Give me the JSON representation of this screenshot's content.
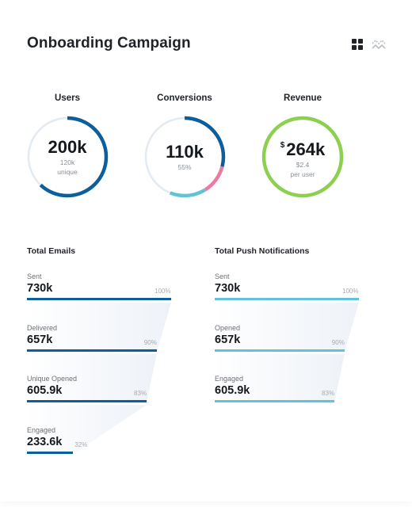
{
  "header": {
    "title": "Onboarding Campaign",
    "icons": [
      "grid-view-icon",
      "trend-view-icon"
    ]
  },
  "kpis": [
    {
      "label": "Users",
      "value": "200k",
      "sub1": "120k",
      "sub2": "unique",
      "ring_fraction": 0.62,
      "color": "#0d5e9c"
    },
    {
      "label": "Conversions",
      "value": "110k",
      "sub1": "55%",
      "sub2": "",
      "segments": [
        {
          "fraction": 0.29,
          "color": "#0d5e9c"
        },
        {
          "fraction": 0.12,
          "color": "#ec7ba2"
        },
        {
          "fraction": 0.15,
          "color": "#62c3d8"
        }
      ]
    },
    {
      "label": "Revenue",
      "currency": "$",
      "value": "264k",
      "sub1": "$2.4",
      "sub2": "per user",
      "ring_fraction": 1.0,
      "color": "#8dcf4f"
    }
  ],
  "emails": {
    "title": "Total Emails",
    "color": "#0d5e9c",
    "rows": [
      {
        "label": "Sent",
        "value": "730k",
        "percent": "100%",
        "fraction": 1.0
      },
      {
        "label": "Delivered",
        "value": "657k",
        "percent": "90%",
        "fraction": 0.9
      },
      {
        "label": "Unique Opened",
        "value": "605.9k",
        "percent": "83%",
        "fraction": 0.83
      },
      {
        "label": "Engaged",
        "value": "233.6k",
        "percent": "32%",
        "fraction": 0.32
      }
    ]
  },
  "push": {
    "title": "Total Push Notifications",
    "color": "#62c3d8",
    "rows": [
      {
        "label": "Sent",
        "value": "730k",
        "percent": "100%",
        "fraction": 1.0
      },
      {
        "label": "Opened",
        "value": "657k",
        "percent": "90%",
        "fraction": 0.9
      },
      {
        "label": "Engaged",
        "value": "605.9k",
        "percent": "83%",
        "fraction": 0.83
      }
    ]
  },
  "colors": {
    "track": "#e3eaf2",
    "funnel_shade": "#eef2f8"
  }
}
